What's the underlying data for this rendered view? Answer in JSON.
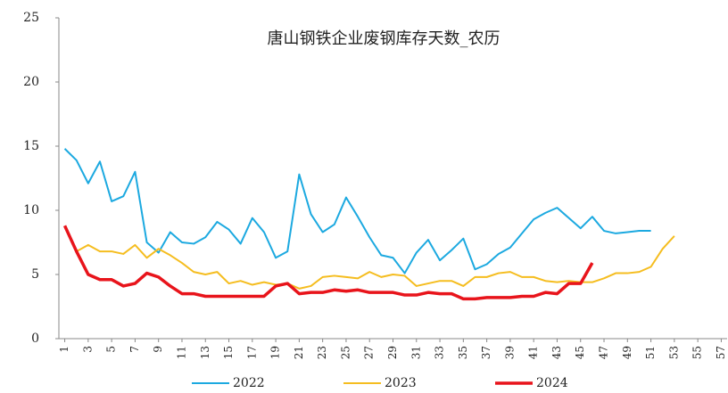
{
  "chart_data": {
    "type": "line",
    "title": "唐山钢铁企业废钢库存天数_农历",
    "categories": [
      "1",
      null,
      "3",
      null,
      "5",
      null,
      "7",
      null,
      "9",
      null,
      "11",
      null,
      "13",
      null,
      "15",
      null,
      "17",
      null,
      "19",
      null,
      "21",
      null,
      "23",
      null,
      "25",
      null,
      "27",
      null,
      "29",
      null,
      "31",
      null,
      "33",
      null,
      "35",
      null,
      "37",
      null,
      "39",
      null,
      "41",
      null,
      "43",
      null,
      "45",
      null,
      "47",
      null,
      "49",
      null,
      "51",
      null,
      "53",
      null,
      "55",
      null,
      "57"
    ],
    "ylim": [
      0,
      25
    ],
    "yticks": [
      0,
      5,
      10,
      15,
      20,
      25
    ],
    "grid": false,
    "legend": "bottom",
    "series": [
      {
        "name": "2022",
        "color": "#1ca9e0",
        "values": [
          14.8,
          13.9,
          12.1,
          13.8,
          10.7,
          11.1,
          13.0,
          7.5,
          6.7,
          8.3,
          7.5,
          7.4,
          7.9,
          9.1,
          8.5,
          7.4,
          9.4,
          8.3,
          6.3,
          6.8,
          12.8,
          9.7,
          8.3,
          8.9,
          11.0,
          9.5,
          7.9,
          6.5,
          6.3,
          5.1,
          6.7,
          7.7,
          6.1,
          6.9,
          7.8,
          5.4,
          5.8,
          6.6,
          7.1,
          8.2,
          9.3,
          9.8,
          10.2,
          9.4,
          8.6,
          9.5,
          8.4,
          8.2,
          8.3,
          8.4,
          8.4,
          null,
          null,
          null,
          null,
          null,
          null
        ]
      },
      {
        "name": "2023",
        "color": "#f5bd1f",
        "values": [
          null,
          6.8,
          7.3,
          6.8,
          6.8,
          6.6,
          7.3,
          6.3,
          7.0,
          6.5,
          5.9,
          5.2,
          5.0,
          5.2,
          4.3,
          4.5,
          4.2,
          4.4,
          4.2,
          4.3,
          3.9,
          4.1,
          4.8,
          4.9,
          4.8,
          4.7,
          5.2,
          4.8,
          5.0,
          4.9,
          4.1,
          4.3,
          4.5,
          4.5,
          4.1,
          4.8,
          4.8,
          5.1,
          5.2,
          4.8,
          4.8,
          4.5,
          4.4,
          4.5,
          4.4,
          4.4,
          4.7,
          5.1,
          5.1,
          5.2,
          5.6,
          7.0,
          8.0,
          null,
          null,
          null,
          null
        ]
      },
      {
        "name": "2024",
        "color": "#e8141b",
        "values": [
          8.8,
          6.8,
          5.0,
          4.6,
          4.6,
          4.1,
          4.3,
          5.1,
          4.8,
          4.1,
          3.5,
          3.5,
          3.3,
          3.3,
          3.3,
          3.3,
          3.3,
          3.3,
          4.1,
          4.3,
          3.5,
          3.6,
          3.6,
          3.8,
          3.7,
          3.8,
          3.6,
          3.6,
          3.6,
          3.4,
          3.4,
          3.6,
          3.5,
          3.5,
          3.1,
          3.1,
          3.2,
          3.2,
          3.2,
          3.3,
          3.3,
          3.6,
          3.5,
          4.3,
          4.3,
          5.9,
          null,
          null,
          null,
          null,
          null,
          null,
          null,
          null,
          null,
          null,
          null
        ]
      }
    ]
  }
}
